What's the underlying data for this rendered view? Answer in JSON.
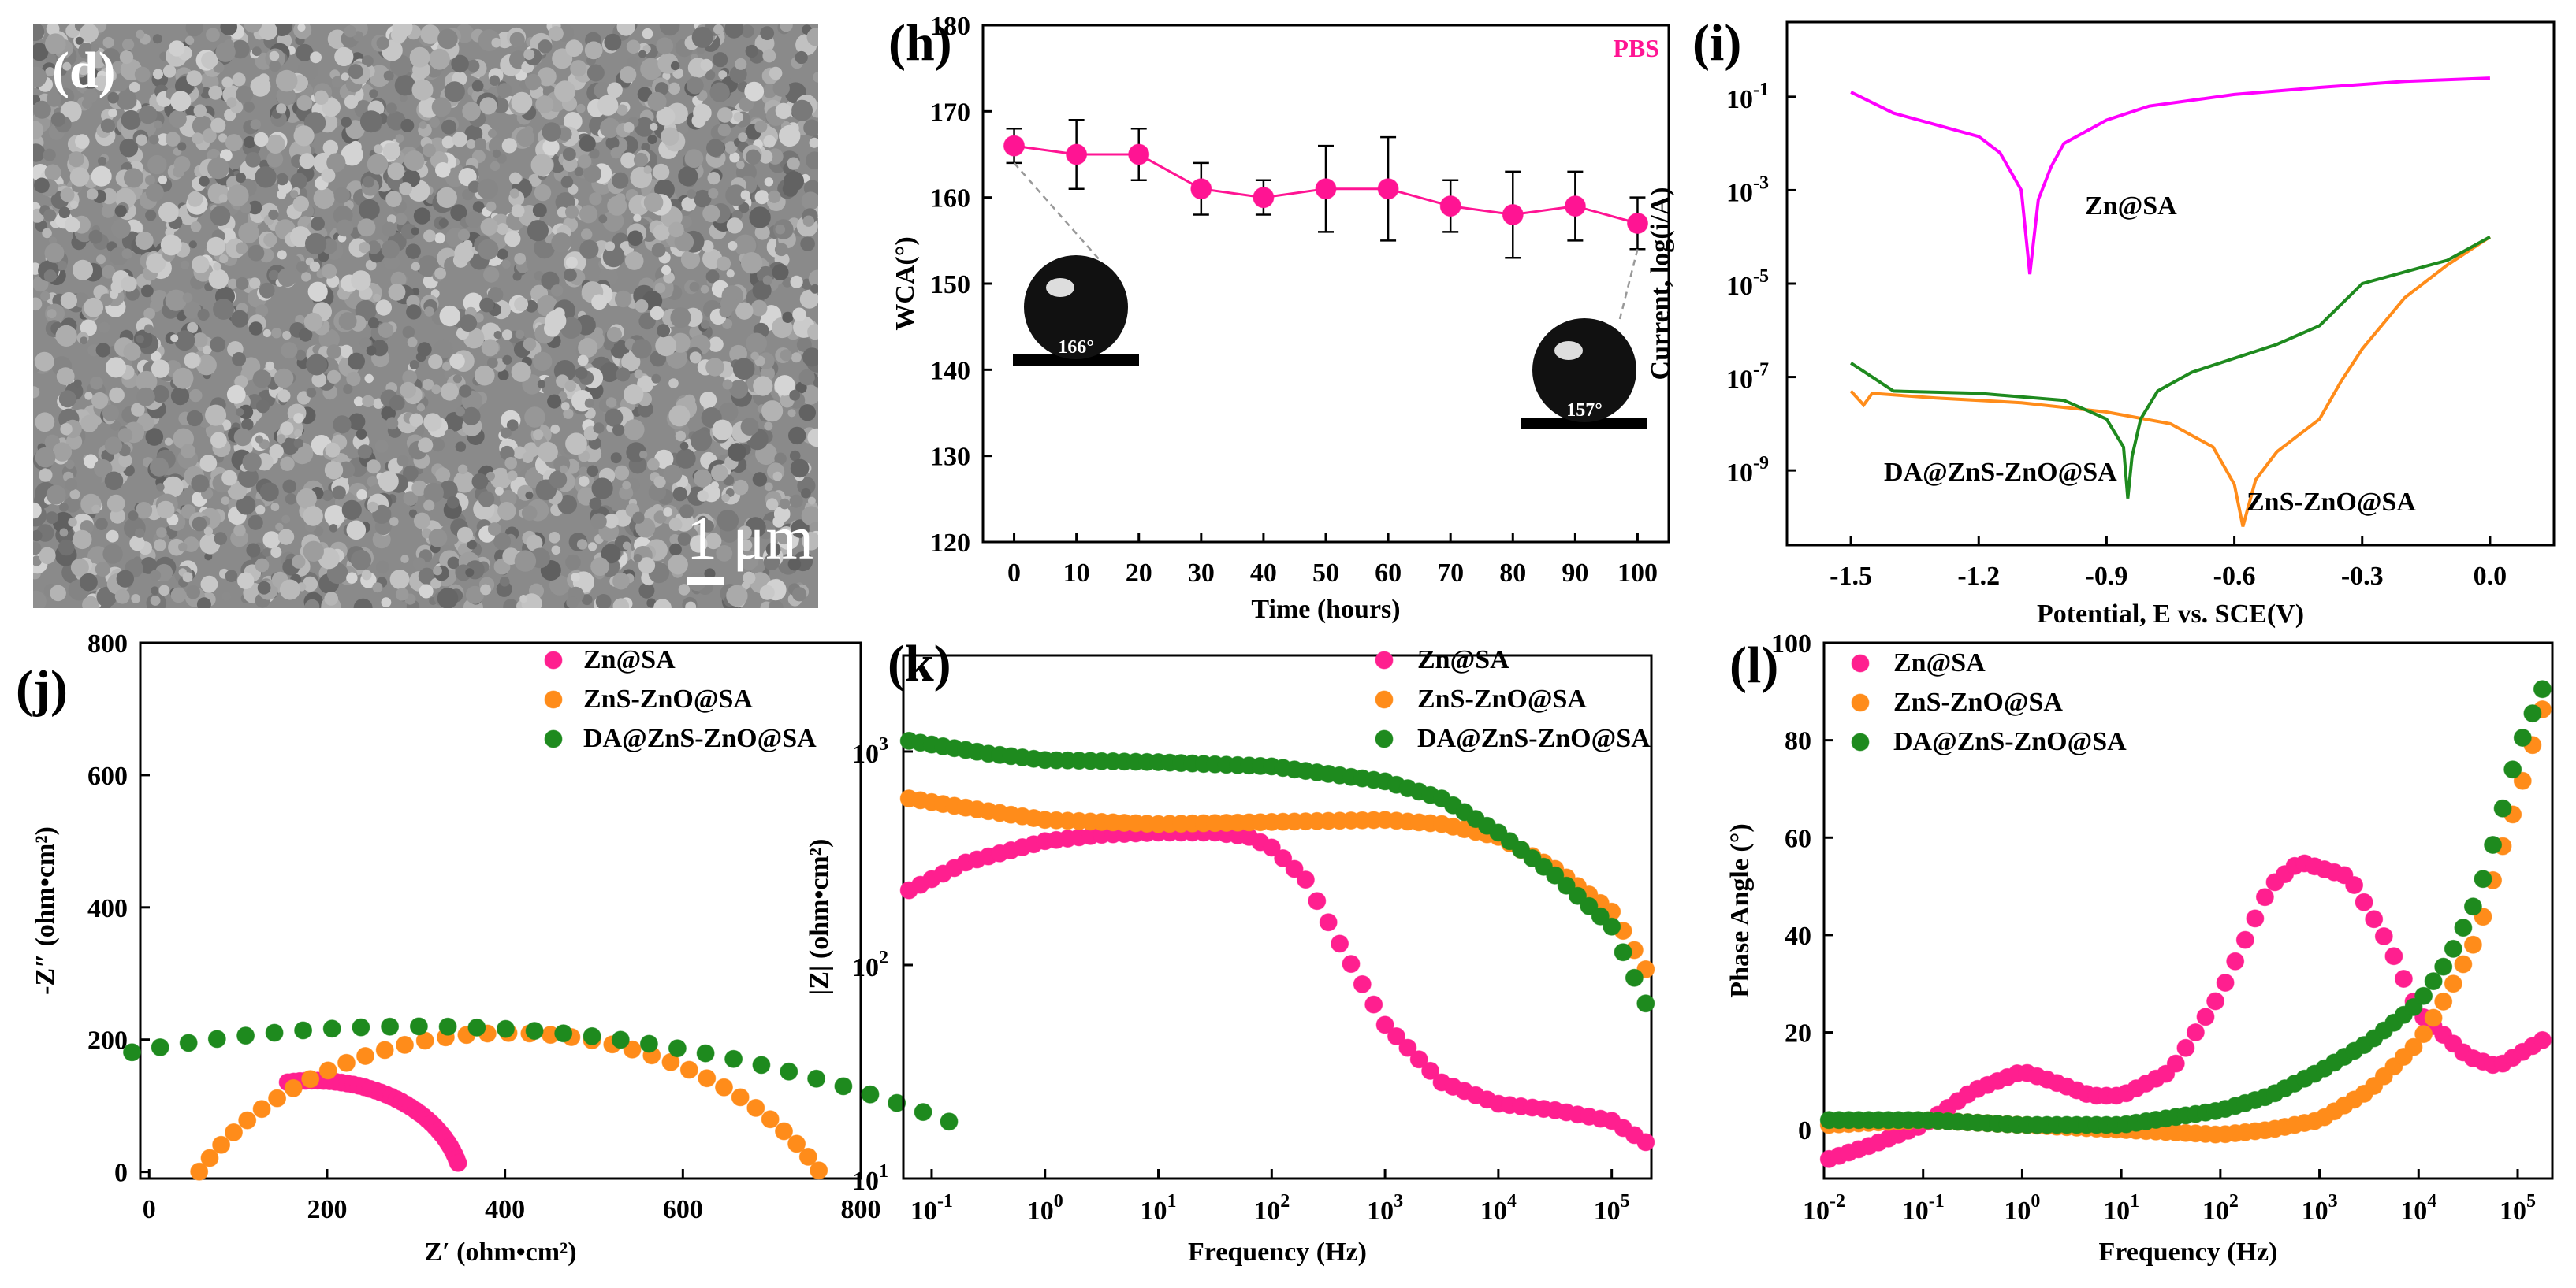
{
  "sem_panel": {
    "label": "(d)",
    "scale_text": "1 μm"
  },
  "chart_data": [
    {
      "panel": "(h)",
      "type": "line",
      "x": [
        0,
        10,
        20,
        30,
        40,
        50,
        60,
        70,
        80,
        90,
        100
      ],
      "y": [
        166,
        165,
        165,
        161,
        160,
        161,
        161,
        159,
        158,
        159,
        157
      ],
      "yerr": [
        2,
        4,
        3,
        3,
        2,
        5,
        6,
        3,
        5,
        4,
        3
      ],
      "xlabel": "Time (hours)",
      "ylabel": "WCA(°)",
      "xlim": [
        -5,
        105
      ],
      "ylim": [
        120,
        180
      ],
      "xticks": [
        0,
        10,
        20,
        30,
        40,
        50,
        60,
        70,
        80,
        90,
        100
      ],
      "yticks": [
        120,
        130,
        140,
        150,
        160,
        170,
        180
      ],
      "annotation": "PBS",
      "insets": [
        "166°",
        "157°"
      ],
      "color": "#ff1493"
    },
    {
      "panel": "(i)",
      "type": "line",
      "scale_y": "log",
      "xlabel": "Potential, E vs. SCE(V)",
      "ylabel": "Current, log(i/A)",
      "xlim": [
        -1.65,
        0.15
      ],
      "ylim_log10": [
        -10.6,
        0.6
      ],
      "xticks": [
        -1.5,
        -1.2,
        -0.9,
        -0.6,
        -0.3,
        0.0
      ],
      "xtick_labels": [
        "-1.5",
        "-1.2",
        "-0.9",
        "-0.6",
        "-0.3",
        "0.0"
      ],
      "yticks_log10": [
        -9,
        -7,
        -5,
        -3,
        -1
      ],
      "ytick_labels": [
        "10",
        "10",
        "10",
        "10",
        "10"
      ],
      "ytick_exps": [
        "-9",
        "-7",
        "-5",
        "-3",
        "-1"
      ],
      "series": [
        {
          "name": "Zn@SA",
          "color": "#ff00ff",
          "x": [
            -1.5,
            -1.4,
            -1.3,
            -1.2,
            -1.15,
            -1.1,
            -1.08,
            -1.06,
            -1.03,
            -1.0,
            -0.9,
            -0.8,
            -0.6,
            -0.4,
            -0.2,
            0.0
          ],
          "log_y": [
            -0.9,
            -1.35,
            -1.6,
            -1.85,
            -2.2,
            -3.0,
            -4.8,
            -3.2,
            -2.5,
            -2.0,
            -1.5,
            -1.2,
            -0.95,
            -0.8,
            -0.67,
            -0.6
          ]
        },
        {
          "name": "ZnS-ZnO@SA",
          "color": "#ff8c1a",
          "x": [
            -1.5,
            -1.47,
            -1.45,
            -1.3,
            -1.1,
            -0.9,
            -0.75,
            -0.65,
            -0.6,
            -0.58,
            -0.55,
            -0.5,
            -0.4,
            -0.35,
            -0.3,
            -0.2,
            -0.1,
            0.0
          ],
          "log_y": [
            -7.3,
            -7.6,
            -7.35,
            -7.45,
            -7.55,
            -7.75,
            -8.0,
            -8.5,
            -9.3,
            -10.2,
            -9.2,
            -8.6,
            -7.9,
            -7.1,
            -6.4,
            -5.3,
            -4.6,
            -4.0
          ]
        },
        {
          "name": "DA@ZnS-ZnO@SA",
          "color": "#1e8a1e",
          "x": [
            -1.5,
            -1.45,
            -1.4,
            -1.2,
            -1.0,
            -0.9,
            -0.86,
            -0.85,
            -0.84,
            -0.82,
            -0.78,
            -0.7,
            -0.5,
            -0.4,
            -0.3,
            -0.1,
            0.0
          ],
          "log_y": [
            -6.7,
            -7.0,
            -7.3,
            -7.35,
            -7.5,
            -7.9,
            -8.5,
            -9.6,
            -8.7,
            -7.9,
            -7.3,
            -6.9,
            -6.3,
            -5.9,
            -5.0,
            -4.5,
            -4.0
          ]
        }
      ],
      "annotations": [
        "Zn@SA",
        "DA@ZnS-ZnO@SA",
        "ZnS-ZnO@SA"
      ]
    },
    {
      "panel": "(j)",
      "type": "scatter",
      "xlabel": "Z′ (ohm•cm²)",
      "ylabel": "-Z″ (ohm•cm²)",
      "xlim": [
        -10,
        800
      ],
      "ylim": [
        -10,
        800
      ],
      "xticks": [
        0,
        200,
        400,
        600,
        800
      ],
      "yticks": [
        0,
        200,
        400,
        600,
        800
      ],
      "series": [
        {
          "name": "Zn@SA",
          "color": "#ff1f8f",
          "center": [
            185,
            -30
          ],
          "radius": 168,
          "theta_range": [
            100,
            15
          ],
          "n": 38
        },
        {
          "name": "ZnS-ZnO@SA",
          "color": "#ff8c1a",
          "center": [
            405,
            -185
          ],
          "radius": 395,
          "theta_range": [
            152,
            18
          ],
          "n": 40
        },
        {
          "name": "DA@ZnS-ZnO@SA",
          "color": "#1e8a1e",
          "center": [
            300,
            -1100
          ],
          "radius": 1320,
          "theta_range": [
            104,
            63
          ],
          "n": 30
        }
      ]
    },
    {
      "panel": "(k)",
      "type": "scatter",
      "scale_x": "log",
      "scale_y": "log",
      "xlabel": "Frequency (Hz)",
      "ylabel": "|Z| (ohm•cm²)",
      "xlim_log10": [
        -1.25,
        5.35
      ],
      "ylim_log10": [
        1,
        3.45
      ],
      "xticks_log10": [
        -1,
        0,
        1,
        2,
        3,
        4,
        5
      ],
      "xtick_exps": [
        "-1",
        "0",
        "1",
        "2",
        "3",
        "4",
        "5"
      ],
      "yticks_log10": [
        1,
        2,
        3
      ],
      "ytick_exps": [
        "1",
        "2",
        "3"
      ],
      "ytick_labels": [
        "10",
        "10",
        "10"
      ],
      "series": [
        {
          "name": "Zn@SA",
          "color": "#ff1f8f",
          "log_x": [
            -1.2,
            -0.7,
            0,
            0.5,
            1,
            1.5,
            1.8,
            2,
            2.3,
            2.6,
            3,
            3.5,
            4,
            4.5,
            5,
            5.3
          ],
          "log_y": [
            2.35,
            2.48,
            2.58,
            2.61,
            2.62,
            2.62,
            2.6,
            2.55,
            2.4,
            2.1,
            1.72,
            1.45,
            1.35,
            1.32,
            1.27,
            1.17
          ]
        },
        {
          "name": "ZnS-ZnO@SA",
          "color": "#ff8c1a",
          "log_x": [
            -1.2,
            -0.5,
            0,
            1,
            2,
            3,
            3.5,
            4,
            4.5,
            5,
            5.3
          ],
          "log_y": [
            2.78,
            2.72,
            2.68,
            2.66,
            2.67,
            2.68,
            2.66,
            2.6,
            2.45,
            2.25,
            1.98
          ]
        },
        {
          "name": "DA@ZnS-ZnO@SA",
          "color": "#1e8a1e",
          "log_x": [
            -1.2,
            -0.5,
            0,
            1,
            2,
            3,
            3.5,
            4,
            4.5,
            5,
            5.3
          ],
          "log_y": [
            3.05,
            2.99,
            2.96,
            2.95,
            2.93,
            2.86,
            2.78,
            2.62,
            2.42,
            2.18,
            1.82
          ]
        }
      ]
    },
    {
      "panel": "(l)",
      "type": "scatter",
      "scale_x": "log",
      "xlabel": "Frequency (Hz)",
      "ylabel": "Phase Angle (°)",
      "xlim_log10": [
        -2,
        5.35
      ],
      "ylim": [
        -10,
        100
      ],
      "xticks_log10": [
        -2,
        -1,
        0,
        1,
        2,
        3,
        4,
        5
      ],
      "xtick_exps": [
        "-2",
        "-1",
        "0",
        "1",
        "2",
        "3",
        "4",
        "5"
      ],
      "yticks": [
        0,
        20,
        40,
        60,
        80,
        100
      ],
      "series": [
        {
          "name": "Zn@SA",
          "color": "#ff1f8f",
          "log_x": [
            -1.95,
            -1.5,
            -1,
            -0.5,
            0,
            0.3,
            0.7,
            1,
            1.5,
            2,
            2.5,
            2.8,
            3.3,
            3.7,
            4,
            4.5,
            4.8,
            5.3
          ],
          "y": [
            -6,
            -3,
            1,
            8,
            12,
            10,
            7,
            7,
            12,
            28,
            50,
            55,
            52,
            38,
            24,
            15,
            13,
            19
          ]
        },
        {
          "name": "ZnS-ZnO@SA",
          "color": "#ff8c1a",
          "log_x": [
            -1.95,
            -1,
            0,
            1,
            2,
            2.5,
            3,
            3.5,
            4,
            4.3,
            4.6,
            4.8,
            5,
            5.3
          ],
          "y": [
            1,
            2,
            1,
            0,
            -1,
            0,
            2,
            8,
            18,
            28,
            40,
            55,
            68,
            90
          ]
        },
        {
          "name": "DA@ZnS-ZnO@SA",
          "color": "#1e8a1e",
          "log_x": [
            -1.95,
            -1,
            0,
            1,
            2,
            2.5,
            3,
            3.5,
            4,
            4.3,
            4.6,
            4.8,
            5,
            5.3
          ],
          "y": [
            2,
            2,
            1,
            1,
            4,
            7,
            12,
            18,
            26,
            35,
            48,
            62,
            78,
            93
          ]
        }
      ]
    }
  ]
}
